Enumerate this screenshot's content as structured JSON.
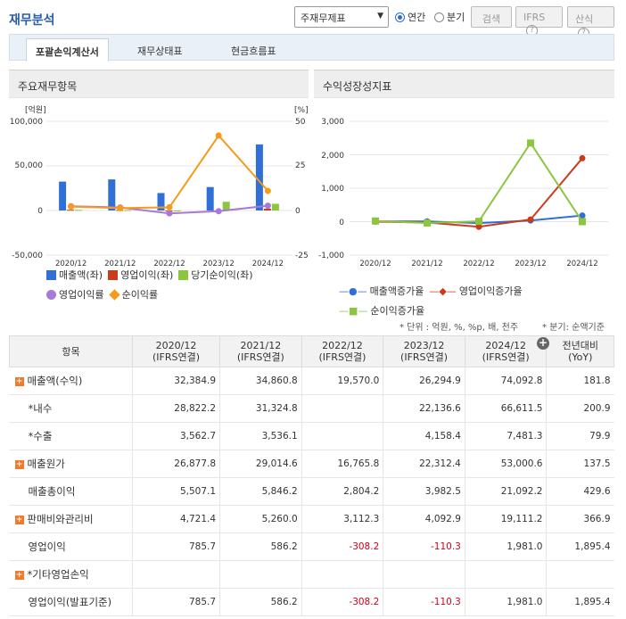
{
  "header": {
    "title": "재무분석",
    "select_value": "주재무제표",
    "radio_annual": "연간",
    "radio_quarter": "분기",
    "search_btn": "검색",
    "ifrs_btn": "IFRS",
    "formula_btn": "산식",
    "help_glyph": "?"
  },
  "tabs": [
    "포괄손익계산서",
    "재무상태표",
    "현금흐름표"
  ],
  "left_panel": {
    "title": "주요재무항목",
    "left_axis_unit": "[억원]",
    "right_axis_unit": "[%]",
    "left_ticks": [
      "100,000",
      "50,000",
      "0",
      "-50,000"
    ],
    "right_ticks": [
      "50",
      "25",
      "0",
      "-25"
    ],
    "legend": [
      "매출액(좌)",
      "영업이익(좌)",
      "당기순이익(좌)",
      "영업이익률",
      "순이익률"
    ]
  },
  "right_panel": {
    "title": "수익성장성지표",
    "ticks": [
      "3,000",
      "2,000",
      "1,000",
      "0",
      "-1,000"
    ],
    "legend": [
      "매출액증가율",
      "영업이익증가율",
      "순이익증가율"
    ]
  },
  "chart_data": [
    {
      "type": "bar",
      "title": "주요재무항목",
      "categories": [
        "2020/12",
        "2021/12",
        "2022/12",
        "2023/12",
        "2024/12"
      ],
      "ylim": [
        -50000,
        100000
      ],
      "y2lim": [
        -25,
        50
      ],
      "series": [
        {
          "name": "매출액(좌)",
          "values": [
            32384.9,
            34860.8,
            19570.0,
            26294.9,
            74092.8
          ],
          "color": "#2f6fd6"
        },
        {
          "name": "영업이익(좌)",
          "values": [
            785.7,
            586.2,
            -308.2,
            -110.3,
            1981.0
          ],
          "color": "#cc3a1a"
        },
        {
          "name": "당기순이익(좌)",
          "values": [
            720,
            450,
            -350,
            9800,
            7500
          ],
          "color": "#8cc63f"
        },
        {
          "name": "영업이익률",
          "type": "line",
          "axis": "right",
          "values": [
            2.4,
            1.7,
            -1.6,
            -0.4,
            2.7
          ],
          "color": "#a879d6"
        },
        {
          "name": "순이익률",
          "type": "line",
          "axis": "right",
          "values": [
            2.2,
            1.3,
            1.8,
            42.0,
            11.0
          ],
          "color": "#f59a1a"
        }
      ],
      "legend": "bottom",
      "grid": true
    },
    {
      "type": "line",
      "title": "수익성장성지표",
      "categories": [
        "2020/12",
        "2021/12",
        "2022/12",
        "2023/12",
        "2024/12"
      ],
      "ylim": [
        -1000,
        3000
      ],
      "series": [
        {
          "name": "매출액증가율",
          "values": [
            10,
            7.6,
            -43.9,
            34.4,
            181.8
          ],
          "color": "#2f6fd6"
        },
        {
          "name": "영업이익증가율",
          "values": [
            0,
            -25.4,
            -152.6,
            64.2,
            1895.4
          ],
          "color": "#cc3a1a"
        },
        {
          "name": "순이익증가율",
          "values": [
            20,
            -40,
            10,
            2350,
            0
          ],
          "color": "#8cc63f"
        }
      ],
      "legend": "bottom",
      "grid": true
    }
  ],
  "notes": {
    "unit": "* 단위 : 억원, %, %p, 배, 천주",
    "quarter": "* 분기: 순액기준"
  },
  "table": {
    "headers": [
      {
        "line1": "항목",
        "line2": ""
      },
      {
        "line1": "2020/12",
        "line2": "(IFRS연결)"
      },
      {
        "line1": "2021/12",
        "line2": "(IFRS연결)"
      },
      {
        "line1": "2022/12",
        "line2": "(IFRS연결)"
      },
      {
        "line1": "2023/12",
        "line2": "(IFRS연결)"
      },
      {
        "line1": "2024/12",
        "line2": "(IFRS연결)"
      },
      {
        "line1": "전년대비",
        "line2": "(YoY)"
      }
    ],
    "rows": [
      {
        "label": "매출액(수익)",
        "expand": true,
        "cells": [
          "32,384.9",
          "34,860.8",
          "19,570.0",
          "26,294.9",
          "74,092.8",
          "181.8"
        ]
      },
      {
        "label": "*내수",
        "expand": false,
        "cells": [
          "28,822.2",
          "31,324.8",
          "",
          "22,136.6",
          "66,611.5",
          "200.9"
        ]
      },
      {
        "label": "*수출",
        "expand": false,
        "cells": [
          "3,562.7",
          "3,536.1",
          "",
          "4,158.4",
          "7,481.3",
          "79.9"
        ]
      },
      {
        "label": "매출원가",
        "expand": true,
        "cells": [
          "26,877.8",
          "29,014.6",
          "16,765.8",
          "22,312.4",
          "53,000.6",
          "137.5"
        ]
      },
      {
        "label": "매출총이익",
        "expand": false,
        "cells": [
          "5,507.1",
          "5,846.2",
          "2,804.2",
          "3,982.5",
          "21,092.2",
          "429.6"
        ]
      },
      {
        "label": "판매비와관리비",
        "expand": true,
        "cells": [
          "4,721.4",
          "5,260.0",
          "3,112.3",
          "4,092.9",
          "19,111.2",
          "366.9"
        ]
      },
      {
        "label": "영업이익",
        "expand": false,
        "cells": [
          "785.7",
          "586.2",
          "-308.2",
          "-110.3",
          "1,981.0",
          "1,895.4"
        ]
      },
      {
        "label": "*기타영업손익",
        "expand": true,
        "cells": [
          "",
          "",
          "",
          "",
          "",
          ""
        ]
      },
      {
        "label": "영업이익(발표기준)",
        "expand": false,
        "cells": [
          "785.7",
          "586.2",
          "-308.2",
          "-110.3",
          "1,981.0",
          "1,895.4"
        ]
      }
    ]
  }
}
